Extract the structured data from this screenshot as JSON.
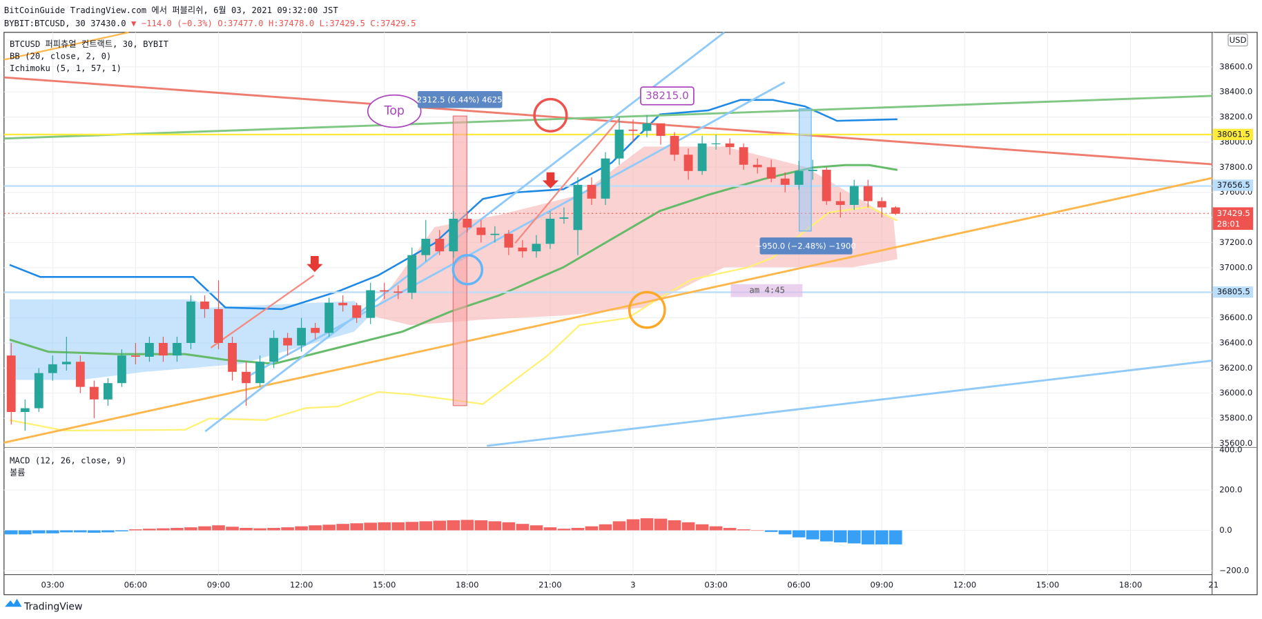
{
  "header": {
    "title": "BitCoinGuide TradingView.com 에서 퍼블리쉬, 6월 03, 2021 09:32:00 JST",
    "symbol": "BYBIT:BTCUSD, 30",
    "price": "37430.0",
    "change": "▼ −114.0 (−0.3%)",
    "ohlc": "O:37477.0 H:37478.0 L:37429.5 C:37429.5"
  },
  "chart_data": {
    "type": "candlestick",
    "legend": [
      "BTCUSD 퍼피츄얼 컨트랙트, 30, BYBIT",
      "BB (20, close, 2, 0)",
      "Ichimoku (5, 1, 57, 1)"
    ],
    "currency": "USD",
    "up_color": "#26a69a",
    "down_color": "#ef5350",
    "open": [
      36300,
      35850,
      35880,
      36160,
      36230,
      36250,
      36050,
      35950,
      36080,
      36300,
      36290,
      36400,
      36300,
      36400,
      36730,
      36670,
      36400,
      36170,
      36080,
      36250,
      36440,
      36380,
      36520,
      36480,
      36720,
      36700,
      36600,
      36820,
      36810,
      36800,
      37100,
      37230,
      37130,
      37390,
      37320,
      37260,
      37270,
      37160,
      37130,
      37190,
      37390,
      37300,
      37660,
      37550,
      37870,
      38100,
      38090,
      38150,
      38050,
      37900,
      37770,
      37990,
      37990,
      37960,
      37820,
      37800,
      37710,
      37660,
      37770,
      37780,
      37530,
      37500,
      37650,
      37530,
      37480
    ],
    "high": [
      36400,
      35950,
      36200,
      36300,
      36450,
      36300,
      36100,
      36120,
      36350,
      36400,
      36450,
      36450,
      36450,
      36780,
      36780,
      36900,
      36450,
      36250,
      36300,
      36500,
      36480,
      36600,
      36560,
      36760,
      36780,
      36720,
      36880,
      36880,
      36860,
      37160,
      37380,
      37300,
      37450,
      37450,
      37380,
      37330,
      37300,
      37220,
      37260,
      37450,
      37480,
      37720,
      37720,
      37920,
      38200,
      38180,
      38215,
      38150,
      38080,
      37950,
      38050,
      38060,
      38030,
      37990,
      37870,
      37860,
      37760,
      37850,
      37860,
      37800,
      37600,
      37700,
      37700,
      37560,
      37490
    ],
    "low": [
      35750,
      35700,
      35850,
      36100,
      36180,
      36000,
      35800,
      35900,
      36050,
      36230,
      36250,
      36250,
      36250,
      36350,
      36600,
      36350,
      36100,
      35900,
      36050,
      36200,
      36300,
      36330,
      36430,
      36450,
      36650,
      36560,
      36550,
      36750,
      36750,
      36750,
      37050,
      37100,
      37080,
      37280,
      37200,
      37200,
      37100,
      37080,
      37080,
      37150,
      37350,
      37100,
      37500,
      37500,
      37820,
      38000,
      38040,
      37980,
      37850,
      37700,
      37740,
      37940,
      37900,
      37780,
      37750,
      37680,
      37600,
      37620,
      37700,
      37500,
      37400,
      37460,
      37480,
      37400,
      37420
    ],
    "close": [
      35850,
      35880,
      36160,
      36230,
      36250,
      36050,
      35950,
      36080,
      36300,
      36290,
      36400,
      36300,
      36400,
      36730,
      36670,
      36400,
      36170,
      36080,
      36250,
      36440,
      36380,
      36520,
      36480,
      36720,
      36700,
      36600,
      36820,
      36810,
      36800,
      37100,
      37230,
      37130,
      37390,
      37320,
      37260,
      37270,
      37160,
      37130,
      37190,
      37390,
      37400,
      37660,
      37550,
      37870,
      38100,
      38090,
      38150,
      38050,
      37900,
      37770,
      37990,
      37990,
      37960,
      37820,
      37800,
      37710,
      37660,
      37770,
      37780,
      37530,
      37500,
      37650,
      37530,
      37480,
      37429.5
    ],
    "xlim": [
      -0.52,
      86.9
    ],
    "xticks": [
      {
        "value": 3,
        "label": "03:00"
      },
      {
        "value": 9,
        "label": "06:00"
      },
      {
        "value": 15,
        "label": "09:00"
      },
      {
        "value": 21,
        "label": "12:00"
      },
      {
        "value": 27,
        "label": "15:00"
      },
      {
        "value": 33,
        "label": "18:00"
      },
      {
        "value": 39,
        "label": "21:00"
      },
      {
        "value": 45,
        "label": "3"
      },
      {
        "value": 51,
        "label": "03:00"
      },
      {
        "value": 57,
        "label": "06:00"
      },
      {
        "value": 63,
        "label": "09:00"
      },
      {
        "value": 69,
        "label": "12:00"
      },
      {
        "value": 75,
        "label": "15:00"
      },
      {
        "value": 81,
        "label": "18:00"
      },
      {
        "value": 87,
        "label": "21"
      }
    ],
    "ylim": [
      35580,
      38875
    ],
    "yticks": [
      {
        "value": 35600,
        "label": "35600.0"
      },
      {
        "value": 35800,
        "label": "35800.0"
      },
      {
        "value": 36000,
        "label": "36000.0"
      },
      {
        "value": 36200,
        "label": "36200.0"
      },
      {
        "value": 36400,
        "label": "36400.0"
      },
      {
        "value": 36600,
        "label": "36600.0"
      },
      {
        "value": 36800,
        "label": "36800.0"
      },
      {
        "value": 37000,
        "label": "37000.0"
      },
      {
        "value": 37200,
        "label": "37200.0"
      },
      {
        "value": 37400,
        "label": "37400.0"
      },
      {
        "value": 37600,
        "label": "37600.0"
      },
      {
        "value": 37800,
        "label": "37800.0"
      },
      {
        "value": 38000,
        "label": "38000.0"
      },
      {
        "value": 38200,
        "label": "38200.0"
      },
      {
        "value": 38400,
        "label": "38400.0"
      },
      {
        "value": 38600,
        "label": "38600.0"
      }
    ],
    "grid": true,
    "levels": [
      {
        "value": 38061.5,
        "color": "#ffeb3b"
      },
      {
        "value": 37656.5,
        "color": "#bbdefb"
      },
      {
        "value": 36805.5,
        "color": "#bbdefb"
      }
    ],
    "last_price": 37429.5,
    "countdown": "28:01",
    "annotations": {
      "top": "Top",
      "range1": "2312.5 (6.44%) 4625",
      "peak": "38215.0",
      "range2": "−950.0 (−2.48%) −1900",
      "time": "am 4:45"
    },
    "macd": {
      "legend": [
        "MACD (12, 26, close, 9)",
        "볼륨"
      ],
      "histogram": [
        -20,
        -20,
        -15,
        -15,
        -10,
        -10,
        -12,
        -10,
        -5,
        5,
        8,
        10,
        12,
        15,
        20,
        25,
        18,
        12,
        10,
        12,
        15,
        20,
        25,
        28,
        32,
        35,
        38,
        40,
        40,
        42,
        45,
        48,
        50,
        52,
        50,
        45,
        40,
        32,
        25,
        15,
        8,
        12,
        20,
        30,
        45,
        55,
        60,
        58,
        50,
        40,
        30,
        20,
        12,
        5,
        0,
        -8,
        -20,
        -35,
        -45,
        -55,
        -60,
        -65,
        -70,
        -70,
        -70
      ],
      "pos_color": "#ef5350",
      "neg_color": "#2196f3",
      "ylim": [
        -220,
        408
      ],
      "yticks": [
        {
          "value": -200,
          "label": "−200.0"
        },
        {
          "value": 0,
          "label": "0.0"
        },
        {
          "value": 200,
          "label": "200.0"
        },
        {
          "value": 400,
          "label": "400.0"
        }
      ]
    },
    "footer": "TradingView"
  }
}
